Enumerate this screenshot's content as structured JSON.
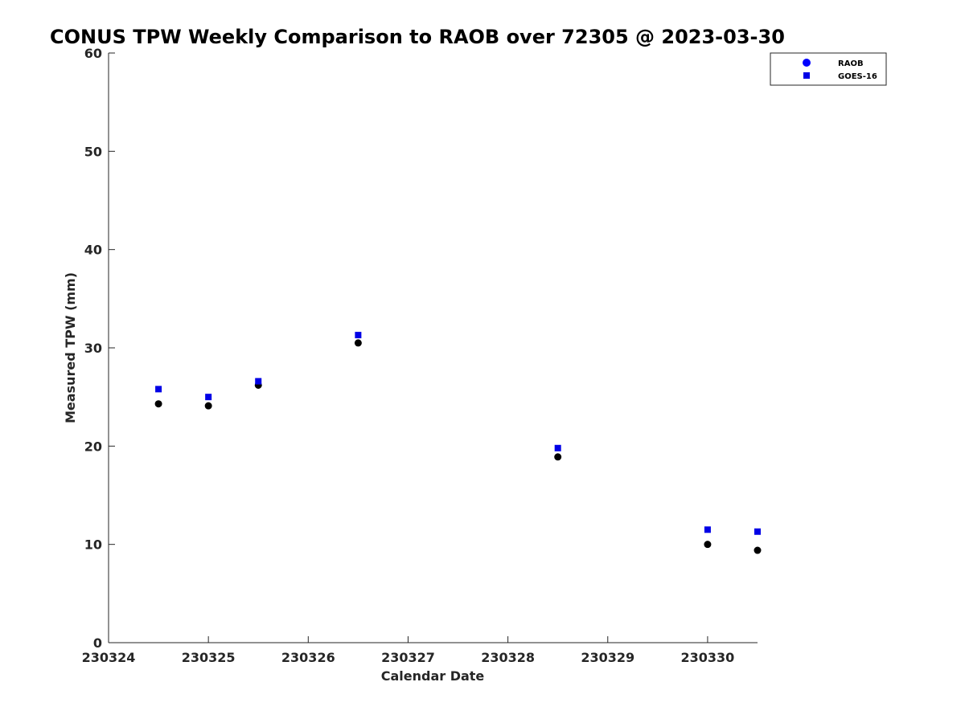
{
  "chart_data": {
    "type": "scatter",
    "title": "CONUS TPW Weekly Comparison to RAOB over 72305 @ 2023-03-30",
    "xlabel": "Calendar Date",
    "ylabel": "Measured TPW (mm)",
    "xlim": [
      230324,
      230330.5
    ],
    "ylim": [
      0,
      60
    ],
    "x_ticks": [
      230324,
      230325,
      230326,
      230327,
      230328,
      230329,
      230330
    ],
    "x_tick_labels": [
      "230324",
      "230325",
      "230326",
      "230327",
      "230328",
      "230329",
      "230330"
    ],
    "y_ticks": [
      0,
      10,
      20,
      30,
      40,
      50,
      60
    ],
    "y_tick_labels": [
      "0",
      "10",
      "20",
      "30",
      "40",
      "50",
      "60"
    ],
    "grid": false,
    "legend_position": "top-right",
    "series": [
      {
        "name": "RAOB",
        "marker": "circle",
        "color": "#000000",
        "legend_color": "#0000ff",
        "points": [
          {
            "x": 230324.5,
            "y": 24.3
          },
          {
            "x": 230325.0,
            "y": 24.1
          },
          {
            "x": 230325.5,
            "y": 26.2
          },
          {
            "x": 230326.5,
            "y": 30.5
          },
          {
            "x": 230328.5,
            "y": 18.9
          },
          {
            "x": 230330.0,
            "y": 10.0
          },
          {
            "x": 230330.5,
            "y": 9.4
          }
        ]
      },
      {
        "name": "GOES-16",
        "marker": "square",
        "color": "#0000e6",
        "legend_color": "#0000e6",
        "points": [
          {
            "x": 230324.5,
            "y": 25.8
          },
          {
            "x": 230325.0,
            "y": 25.0
          },
          {
            "x": 230325.5,
            "y": 26.6
          },
          {
            "x": 230326.5,
            "y": 31.3
          },
          {
            "x": 230328.5,
            "y": 19.8
          },
          {
            "x": 230330.0,
            "y": 11.5
          },
          {
            "x": 230330.5,
            "y": 11.3
          }
        ]
      }
    ]
  },
  "colors": {
    "axis": "#262626",
    "background": "#ffffff"
  }
}
